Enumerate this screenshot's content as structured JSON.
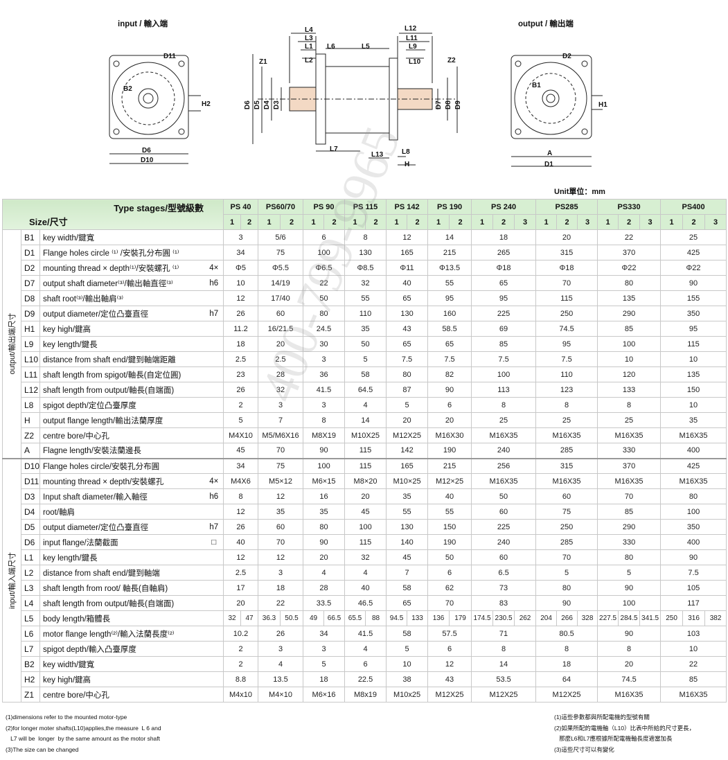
{
  "drawings": {
    "input_title": "input / 輸入端",
    "output_title": "output / 輸出端",
    "input_labels": {
      "D11": "D11",
      "B2": "B2",
      "H2": "H2",
      "D6": "D6",
      "D10": "D10"
    },
    "center_labels": {
      "L4": "L4",
      "L3": "L3",
      "L1": "L1",
      "L2": "L2",
      "L6": "L6",
      "L5": "L5",
      "L12": "L12",
      "L11": "L11",
      "L9": "L9",
      "L10": "L10",
      "Z1": "Z1",
      "Z2": "Z2",
      "D6": "D6",
      "D5": "D5",
      "D4": "D4",
      "D3": "D3",
      "D7": "D7",
      "D8": "D8",
      "D9": "D9",
      "L7": "L7",
      "L13": "L13",
      "L8": "L8",
      "H": "H"
    },
    "output_labels": {
      "D2": "D2",
      "B1": "B1",
      "H1": "H1",
      "A": "A",
      "D1": "D1"
    }
  },
  "unit": "Unit單位：mm",
  "watermark": "400-799-9965",
  "table": {
    "header_type": "Type stages/型號級數",
    "header_size": "Size/尺寸",
    "models": [
      {
        "name": "PS 40",
        "stages": [
          "1",
          "2"
        ]
      },
      {
        "name": "PS60/70",
        "stages": [
          "1",
          "2"
        ]
      },
      {
        "name": "PS 90",
        "stages": [
          "1",
          "2"
        ]
      },
      {
        "name": "PS 115",
        "stages": [
          "1",
          "2"
        ]
      },
      {
        "name": "PS 142",
        "stages": [
          "1",
          "2"
        ]
      },
      {
        "name": "PS 190",
        "stages": [
          "1",
          "2"
        ]
      },
      {
        "name": "PS 240",
        "stages": [
          "1",
          "2",
          "3"
        ]
      },
      {
        "name": "PS285",
        "stages": [
          "1",
          "2",
          "3"
        ]
      },
      {
        "name": "PS330",
        "stages": [
          "1",
          "2",
          "3"
        ]
      },
      {
        "name": "PS400",
        "stages": [
          "1",
          "2",
          "3"
        ]
      }
    ],
    "groups": [
      {
        "label": "output/輸出端尺寸",
        "rows": [
          {
            "code": "B1",
            "desc": "key width/鍵寬",
            "tol": "",
            "values": [
              "3",
              "5/6",
              "6",
              "8",
              "12",
              "14",
              "18",
              "20",
              "22",
              "25"
            ]
          },
          {
            "code": "D1",
            "desc": "Flange holes circle ⁽¹⁾ /安裝孔分布圓 ⁽¹⁾",
            "tol": "",
            "values": [
              "34",
              "75",
              "100",
              "130",
              "165",
              "215",
              "265",
              "315",
              "370",
              "425"
            ]
          },
          {
            "code": "D2",
            "desc": "mounting thread × depth⁽¹⁾/安裝螺孔 ⁽¹⁾",
            "tol": "4×",
            "values": [
              "Φ5",
              "Φ5.5",
              "Φ6.5",
              "Φ8.5",
              "Φ11",
              "Φ13.5",
              "Φ18",
              "Φ18",
              "Φ22",
              "Φ22"
            ]
          },
          {
            "code": "D7",
            "desc": "output shaft diameter⁽³⁾/輸出軸直徑⁽³⁾",
            "tol": "h6",
            "values": [
              "10",
              "14/19",
              "22",
              "32",
              "40",
              "55",
              "65",
              "70",
              "80",
              "90"
            ]
          },
          {
            "code": "D8",
            "desc": "shaft root⁽³⁾/輸出軸肩⁽³⁾",
            "tol": "",
            "values": [
              "12",
              "17/40",
              "50",
              "55",
              "65",
              "95",
              "95",
              "115",
              "135",
              "155"
            ]
          },
          {
            "code": "D9",
            "desc": "output diameter/定位凸臺直徑",
            "tol": "h7",
            "values": [
              "26",
              "60",
              "80",
              "110",
              "130",
              "160",
              "225",
              "250",
              "290",
              "350"
            ]
          },
          {
            "code": "H1",
            "desc": "key high/鍵高",
            "tol": "",
            "values": [
              "11.2",
              "16/21.5",
              "24.5",
              "35",
              "43",
              "58.5",
              "69",
              "74.5",
              "85",
              "95"
            ]
          },
          {
            "code": "L9",
            "desc": "key length/鍵長",
            "tol": "",
            "values": [
              "18",
              "20",
              "30",
              "50",
              "65",
              "65",
              "85",
              "95",
              "100",
              "115"
            ]
          },
          {
            "code": "L10",
            "desc": "distance from shaft end/鍵到軸端距離",
            "tol": "",
            "values": [
              "2.5",
              "2.5",
              "3",
              "5",
              "7.5",
              "7.5",
              "7.5",
              "7.5",
              "10",
              "10"
            ]
          },
          {
            "code": "L11",
            "desc": "shaft length from spigot/軸長(自定位圓)",
            "tol": "",
            "values": [
              "23",
              "28",
              "36",
              "58",
              "80",
              "82",
              "100",
              "110",
              "120",
              "135"
            ]
          },
          {
            "code": "L12",
            "desc": "shaft length from output/軸長(自端面)",
            "tol": "",
            "values": [
              "26",
              "32",
              "41.5",
              "64.5",
              "87",
              "90",
              "113",
              "123",
              "133",
              "150"
            ]
          },
          {
            "code": "L8",
            "desc": "spigot depth/定位凸臺厚度",
            "tol": "",
            "values": [
              "2",
              "3",
              "3",
              "4",
              "5",
              "6",
              "8",
              "8",
              "8",
              "10"
            ]
          },
          {
            "code": "H",
            "desc": "output flange length/輸出法蘭厚度",
            "tol": "",
            "values": [
              "5",
              "7",
              "8",
              "14",
              "20",
              "20",
              "25",
              "25",
              "25",
              "35"
            ]
          },
          {
            "code": "Z2",
            "desc": "centre bore/中心孔",
            "tol": "",
            "values": [
              "M4X10",
              "M5/M6X16",
              "M8X19",
              "M10X25",
              "M12X25",
              "M16X30",
              "M16X35",
              "M16X35",
              "M16X35",
              "M16X35"
            ]
          },
          {
            "code": "A",
            "desc": "Flagne length/安裝法蘭邊長",
            "tol": "",
            "values": [
              "45",
              "70",
              "90",
              "115",
              "142",
              "190",
              "240",
              "285",
              "330",
              "400"
            ]
          }
        ]
      },
      {
        "label": "input/輸入端尺寸",
        "rows": [
          {
            "code": "D10",
            "desc": "Flange holes circle/安裝孔分布圓",
            "tol": "",
            "values": [
              "34",
              "75",
              "100",
              "115",
              "165",
              "215",
              "256",
              "315",
              "370",
              "425"
            ]
          },
          {
            "code": "D11",
            "desc": "mounting thread × depth/安裝螺孔",
            "tol": "4×",
            "values": [
              "M4X6",
              "M5×12",
              "M6×15",
              "M8×20",
              "M10×25",
              "M12×25",
              "M16X35",
              "M16X35",
              "M16X35",
              "M16X35"
            ]
          },
          {
            "code": "D3",
            "desc": "Input shaft diameter/輸入軸徑",
            "tol": "h6",
            "values": [
              "8",
              "12",
              "16",
              "20",
              "35",
              "40",
              "50",
              "60",
              "70",
              "80"
            ]
          },
          {
            "code": "D4",
            "desc": "root/軸肩",
            "tol": "",
            "values": [
              "12",
              "35",
              "35",
              "45",
              "55",
              "55",
              "60",
              "75",
              "85",
              "100"
            ]
          },
          {
            "code": "D5",
            "desc": "output diameter/定位凸臺直徑",
            "tol": "h7",
            "values": [
              "26",
              "60",
              "80",
              "100",
              "130",
              "150",
              "225",
              "250",
              "290",
              "350"
            ]
          },
          {
            "code": "D6",
            "desc": "input flange/法蘭截面",
            "tol": "□",
            "values": [
              "40",
              "70",
              "90",
              "115",
              "140",
              "190",
              "240",
              "285",
              "330",
              "400"
            ]
          },
          {
            "code": "L1",
            "desc": "key length/鍵長",
            "tol": "",
            "values": [
              "12",
              "12",
              "20",
              "32",
              "45",
              "50",
              "60",
              "70",
              "80",
              "90"
            ]
          },
          {
            "code": "L2",
            "desc": "distance from shaft end/鍵到軸端",
            "tol": "",
            "values": [
              "2.5",
              "3",
              "4",
              "4",
              "7",
              "6",
              "6.5",
              "5",
              "5",
              "7.5"
            ]
          },
          {
            "code": "L3",
            "desc": "shaft length from root/ 軸長(自軸肩)",
            "tol": "",
            "values": [
              "17",
              "18",
              "28",
              "40",
              "58",
              "62",
              "73",
              "80",
              "90",
              "105"
            ]
          },
          {
            "code": "L4",
            "desc": "shaft length from output/軸長(自端面)",
            "tol": "",
            "values": [
              "20",
              "22",
              "33.5",
              "46.5",
              "65",
              "70",
              "83",
              "90",
              "100",
              "117"
            ]
          },
          {
            "code": "L5",
            "desc": "body length/箱體長",
            "tol": "",
            "stage_values": [
              "32",
              "47",
              "36.3",
              "50.5",
              "49",
              "66.5",
              "65.5",
              "88",
              "94.5",
              "133",
              "136",
              "179",
              "174.5",
              "230.5",
              "262",
              "204",
              "266",
              "328",
              "227.5",
              "284.5",
              "341.5",
              "250",
              "316",
              "382"
            ]
          },
          {
            "code": "L6",
            "desc": "motor flange length⁽²⁾/輸入法蘭長度⁽²⁾",
            "tol": "",
            "values": [
              "10.2",
              "26",
              "34",
              "41.5",
              "58",
              "57.5",
              "71",
              "80.5",
              "90",
              "103"
            ]
          },
          {
            "code": "L7",
            "desc": "spigot depth/輸入凸臺厚度",
            "tol": "",
            "values": [
              "2",
              "3",
              "3",
              "4",
              "5",
              "6",
              "8",
              "8",
              "8",
              "10"
            ]
          },
          {
            "code": "B2",
            "desc": "key width/鍵寬",
            "tol": "",
            "values": [
              "2",
              "4",
              "5",
              "6",
              "10",
              "12",
              "14",
              "18",
              "20",
              "22"
            ]
          },
          {
            "code": "H2",
            "desc": "key high/鍵高",
            "tol": "",
            "values": [
              "8.8",
              "13.5",
              "18",
              "22.5",
              "38",
              "43",
              "53.5",
              "64",
              "74.5",
              "85"
            ]
          },
          {
            "code": "Z1",
            "desc": "centre bore/中心孔",
            "tol": "",
            "values": [
              "M4x10",
              "M4×10",
              "M6×16",
              "M8x19",
              "M10x25",
              "M12X25",
              "M12X25",
              "M12X25",
              "M16X35",
              "M16X35"
            ]
          }
        ]
      }
    ]
  },
  "notes_en": [
    "(1)dimensions refer to the mounted motor-type",
    "(2)for longer moter shafts(L10)applies,the measure  L 6 and",
    "   L7 will be  longer  by the same amount as the motor shaft",
    "(3)The size can be changed"
  ],
  "notes_zh": [
    "(1)這些參數都與所配電機的型號有關",
    "(2)如果所配的電機軸（L10）比表中所給的尺寸更長，",
    "   那麼L6和L7應根據所配電機軸長度適當加長",
    "(3)這些尺寸可以有變化"
  ]
}
